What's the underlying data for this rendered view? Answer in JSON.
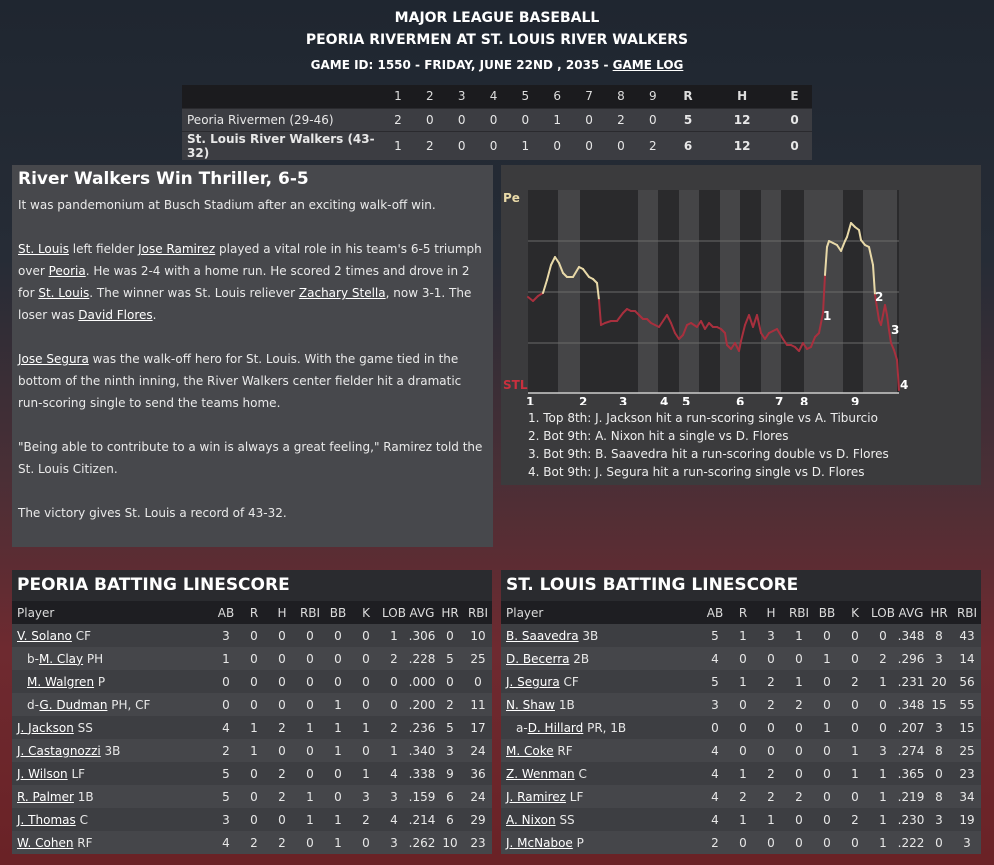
{
  "header": {
    "league": "MAJOR LEAGUE BASEBALL",
    "matchup": "PEORIA RIVERMEN AT ST. LOUIS RIVER WALKERS",
    "game_info": "GAME ID: 1550 - FRIDAY, JUNE 22ND , 2035 - ",
    "game_log_link": "GAME LOG"
  },
  "linescore": {
    "headers": [
      "1",
      "2",
      "3",
      "4",
      "5",
      "6",
      "7",
      "8",
      "9",
      "R",
      "H",
      "E"
    ],
    "away": {
      "team": "Peoria Rivermen (29-46)",
      "innings": [
        "2",
        "0",
        "0",
        "0",
        "0",
        "1",
        "0",
        "2",
        "0"
      ],
      "r": "5",
      "h": "12",
      "e": "0"
    },
    "home": {
      "team": "St. Louis River Walkers (43-32)",
      "innings": [
        "1",
        "2",
        "0",
        "0",
        "1",
        "0",
        "0",
        "0",
        "2"
      ],
      "r": "6",
      "h": "12",
      "e": "0"
    }
  },
  "story": {
    "title": "River Walkers Win Thriller, 6-5",
    "p1": "It was pandemonium at Busch Stadium after an exciting walk-off win.",
    "p2": {
      "a": "St. Louis",
      "b": " left fielder ",
      "c": "Jose Ramirez",
      "d": " played a vital role in his team's 6-5 triumph over ",
      "e": "Peoria",
      "f": ". He was 2-4 with a home run. He scored 2 times and drove in 2 for ",
      "g": "St. Louis",
      "h": ". The winner was St. Louis reliever ",
      "i": "Zachary Stella",
      "j": ", now 3-1. The loser was ",
      "k": "David Flores",
      "l": "."
    },
    "p3": {
      "a": "Jose Segura",
      "b": " was the walk-off hero for St. Louis. With the game tied in the bottom of the ninth inning, the River Walkers center fielder hit a dramatic run-scoring single to send the teams home."
    },
    "p4": "\"Being able to contribute to a win is always a great feeling,\" Ramirez told the St. Louis Citizen.",
    "p5": "The victory gives St. Louis a record of 43-32."
  },
  "winprob": {
    "top_label": "Pe",
    "bottom_label": "STL",
    "innings": [
      "1",
      "2",
      "3",
      "4",
      "5",
      "6",
      "7",
      "8",
      "9"
    ],
    "colors": {
      "peoria": "#e8d9a8",
      "stlouis": "#a8303e"
    },
    "notes": [
      "1. Top 8th: J. Jackson hit a run-scoring single vs A. Tiburcio",
      "2. Bot 9th: A. Nixon hit a single vs D. Flores",
      "3. Bot 9th: B. Saavedra hit a run-scoring double vs D. Flores",
      "4. Bot 9th: J. Segura hit a run-scoring single vs D. Flores"
    ],
    "markers": [
      "1",
      "2",
      "3",
      "4"
    ]
  },
  "batting": {
    "columns": [
      "Player",
      "AB",
      "R",
      "H",
      "RBI",
      "BB",
      "K",
      "LOB",
      "AVG",
      "HR",
      "RBI"
    ],
    "peoria": {
      "title": "PEORIA BATTING LINESCORE",
      "rows": [
        {
          "pre": "",
          "name": "V. Solano",
          "pos": " CF",
          "sub": false,
          "stats": [
            "3",
            "0",
            "0",
            "0",
            "0",
            "0",
            "1",
            ".306",
            "0",
            "10"
          ]
        },
        {
          "pre": "b-",
          "name": "M. Clay",
          "pos": " PH",
          "sub": true,
          "stats": [
            "1",
            "0",
            "0",
            "0",
            "0",
            "0",
            "2",
            ".228",
            "5",
            "25"
          ]
        },
        {
          "pre": "",
          "name": "M. Walgren",
          "pos": " P",
          "sub": true,
          "stats": [
            "0",
            "0",
            "0",
            "0",
            "0",
            "0",
            "0",
            ".000",
            "0",
            "0"
          ]
        },
        {
          "pre": "d-",
          "name": "G. Dudman",
          "pos": " PH, CF",
          "sub": true,
          "stats": [
            "0",
            "0",
            "0",
            "0",
            "1",
            "0",
            "0",
            ".200",
            "2",
            "11"
          ]
        },
        {
          "pre": "",
          "name": "J. Jackson",
          "pos": " SS",
          "sub": false,
          "stats": [
            "4",
            "1",
            "2",
            "1",
            "1",
            "1",
            "2",
            ".236",
            "5",
            "17"
          ]
        },
        {
          "pre": "",
          "name": "J. Castagnozzi",
          "pos": " 3B",
          "sub": false,
          "stats": [
            "2",
            "1",
            "0",
            "0",
            "1",
            "0",
            "1",
            ".340",
            "3",
            "24"
          ]
        },
        {
          "pre": "",
          "name": "J. Wilson",
          "pos": " LF",
          "sub": false,
          "stats": [
            "5",
            "0",
            "2",
            "0",
            "0",
            "1",
            "4",
            ".338",
            "9",
            "36"
          ]
        },
        {
          "pre": "",
          "name": "R. Palmer",
          "pos": " 1B",
          "sub": false,
          "stats": [
            "5",
            "0",
            "2",
            "1",
            "0",
            "3",
            "3",
            ".159",
            "6",
            "24"
          ]
        },
        {
          "pre": "",
          "name": "J. Thomas",
          "pos": " C",
          "sub": false,
          "stats": [
            "3",
            "0",
            "0",
            "1",
            "1",
            "2",
            "4",
            ".214",
            "6",
            "29"
          ]
        },
        {
          "pre": "",
          "name": "W. Cohen",
          "pos": " RF",
          "sub": false,
          "stats": [
            "4",
            "2",
            "2",
            "0",
            "1",
            "0",
            "3",
            ".262",
            "10",
            "23"
          ]
        }
      ]
    },
    "stlouis": {
      "title": "ST. LOUIS BATTING LINESCORE",
      "rows": [
        {
          "pre": "",
          "name": "B. Saavedra",
          "pos": " 3B",
          "sub": false,
          "stats": [
            "5",
            "1",
            "3",
            "1",
            "0",
            "0",
            "0",
            ".348",
            "8",
            "43"
          ]
        },
        {
          "pre": "",
          "name": "D. Becerra",
          "pos": " 2B",
          "sub": false,
          "stats": [
            "4",
            "0",
            "0",
            "0",
            "1",
            "0",
            "2",
            ".296",
            "3",
            "14"
          ]
        },
        {
          "pre": "",
          "name": "J. Segura",
          "pos": " CF",
          "sub": false,
          "stats": [
            "5",
            "1",
            "2",
            "1",
            "0",
            "2",
            "1",
            ".231",
            "20",
            "56"
          ]
        },
        {
          "pre": "",
          "name": "N. Shaw",
          "pos": " 1B",
          "sub": false,
          "stats": [
            "3",
            "0",
            "2",
            "2",
            "0",
            "0",
            "0",
            ".348",
            "15",
            "55"
          ]
        },
        {
          "pre": "a-",
          "name": "D. Hillard",
          "pos": " PR, 1B",
          "sub": true,
          "stats": [
            "0",
            "0",
            "0",
            "0",
            "1",
            "0",
            "0",
            ".207",
            "3",
            "15"
          ]
        },
        {
          "pre": "",
          "name": "M. Coke",
          "pos": " RF",
          "sub": false,
          "stats": [
            "4",
            "0",
            "0",
            "0",
            "0",
            "1",
            "3",
            ".274",
            "8",
            "25"
          ]
        },
        {
          "pre": "",
          "name": "Z. Wenman",
          "pos": " C",
          "sub": false,
          "stats": [
            "4",
            "1",
            "2",
            "0",
            "0",
            "1",
            "1",
            ".365",
            "0",
            "23"
          ]
        },
        {
          "pre": "",
          "name": "J. Ramirez",
          "pos": " LF",
          "sub": false,
          "stats": [
            "4",
            "2",
            "2",
            "2",
            "0",
            "0",
            "1",
            ".219",
            "8",
            "34"
          ]
        },
        {
          "pre": "",
          "name": "A. Nixon",
          "pos": " SS",
          "sub": false,
          "stats": [
            "4",
            "1",
            "1",
            "0",
            "0",
            "2",
            "1",
            ".230",
            "3",
            "19"
          ]
        },
        {
          "pre": "",
          "name": "J. McNaboe",
          "pos": " P",
          "sub": false,
          "stats": [
            "2",
            "0",
            "0",
            "0",
            "0",
            "0",
            "1",
            ".222",
            "0",
            "3"
          ]
        }
      ]
    }
  }
}
